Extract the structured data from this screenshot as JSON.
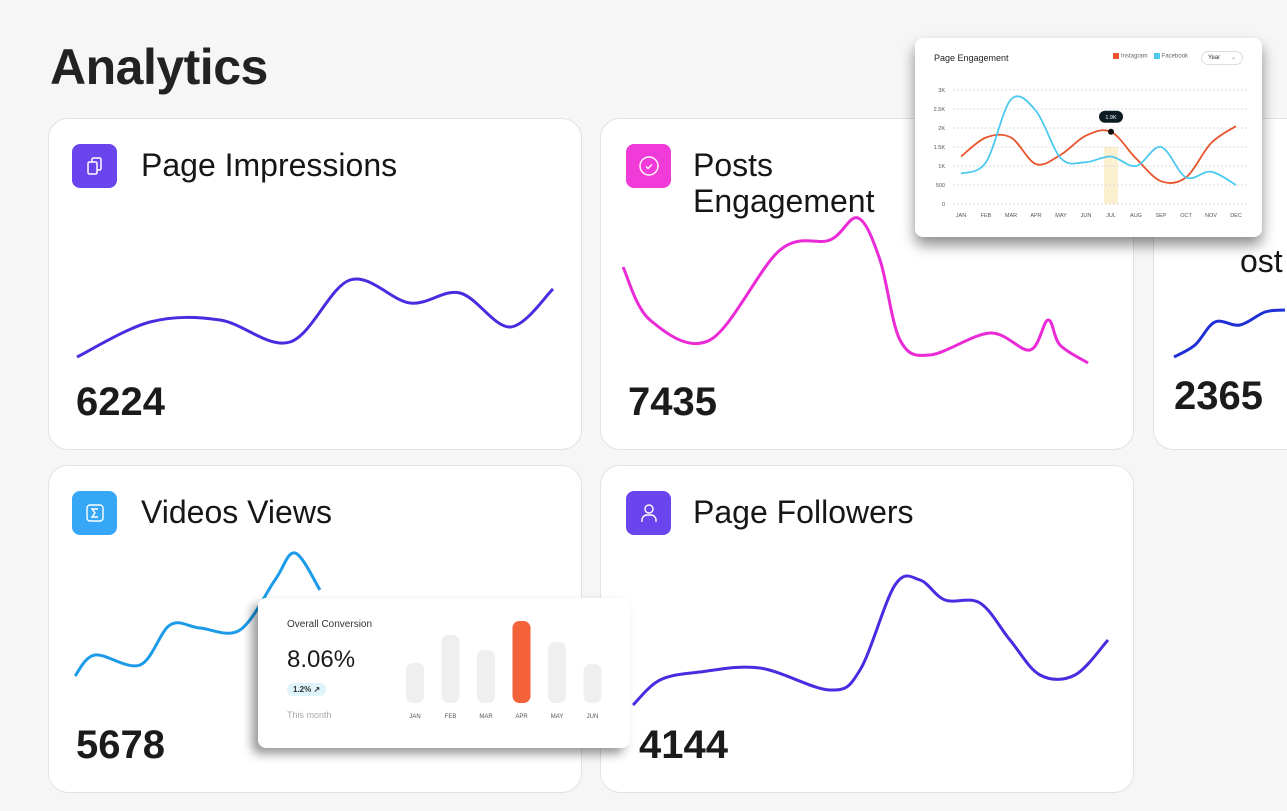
{
  "page_title": "Analytics",
  "cards": [
    {
      "title": "Page Impressions",
      "value": "6224",
      "icon": "document-copy-icon",
      "color": "#6a45ee",
      "line": "#4a2be0"
    },
    {
      "title": "Posts Engagement",
      "value": "7435",
      "icon": "check-circle-icon",
      "color": "#f03bd8",
      "line": "#ea2ad6"
    },
    {
      "title": "ost",
      "value": "2365",
      "icon": "",
      "color": "",
      "line": "#1f2fd6"
    },
    {
      "title": "Videos Views",
      "value": "5678",
      "icon": "sigma-icon",
      "color": "#36a6f7",
      "line": "#1c9be8"
    },
    {
      "title": "Page Followers",
      "value": "4144",
      "icon": "user-icon",
      "color": "#6a45ee",
      "line": "#4a2be0"
    }
  ],
  "engagement": {
    "title": "Page Engagement",
    "legend": [
      "Instagram",
      "Facebook"
    ],
    "select": "Year",
    "tooltip": "1.9K",
    "colors": {
      "Instagram": "#e8542c",
      "Facebook": "#4dc9ef"
    },
    "chart_data": {
      "type": "line",
      "categories": [
        "JAN",
        "FEB",
        "MAR",
        "APR",
        "MAY",
        "JUN",
        "JUL",
        "AUG",
        "SEP",
        "OCT",
        "NOV",
        "DEC"
      ],
      "yticks": [
        "0",
        "500",
        "1K",
        "1.5K",
        "2K",
        "2.5K",
        "3K"
      ],
      "ylim": [
        0,
        3000
      ],
      "grid": true,
      "legend": "top-right",
      "series": [
        {
          "name": "Instagram",
          "values": [
            1250,
            1750,
            1750,
            1050,
            1300,
            1800,
            1900,
            1200,
            600,
            700,
            1600,
            2050
          ]
        },
        {
          "name": "Facebook",
          "values": [
            800,
            1100,
            2750,
            2450,
            1200,
            1100,
            1250,
            1000,
            1500,
            700,
            850,
            500
          ]
        }
      ],
      "highlight": "JUL"
    }
  },
  "conversion": {
    "title": "Overall Conversion",
    "value": "8.06%",
    "badge": "1.2%",
    "period": "This month",
    "chart_data": {
      "type": "bar",
      "categories": [
        "JAN",
        "FEB",
        "MAR",
        "APR",
        "MAY",
        "JUN"
      ],
      "values": [
        40,
        68,
        53,
        82,
        61,
        39
      ],
      "highlight": "APR",
      "highlight_color": "#f4623a"
    }
  }
}
